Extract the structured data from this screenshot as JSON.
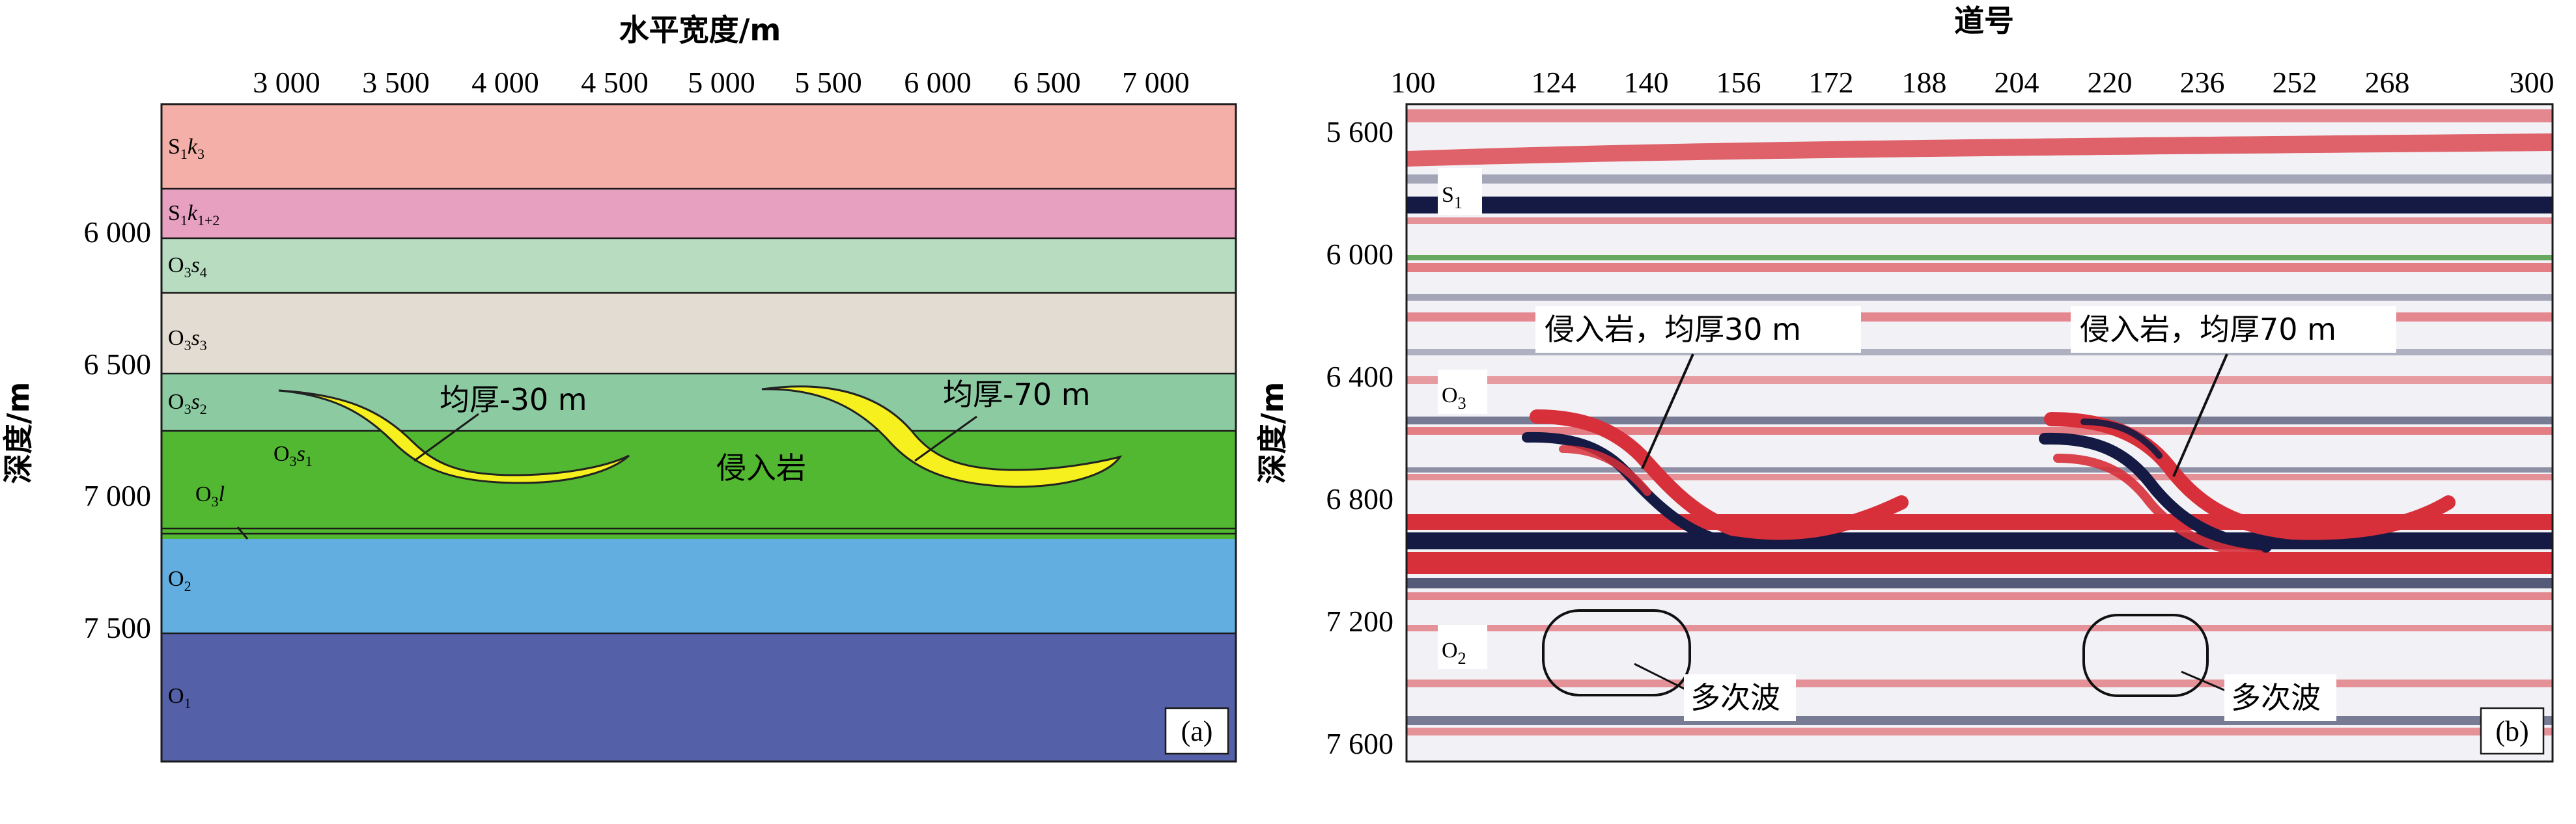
{
  "panel_a": {
    "x_axis_title": "水平宽度/m",
    "y_axis_title": "深度/m",
    "x_ticks": [
      "3 000",
      "3 500",
      "4 000",
      "4 500",
      "5 000",
      "5 500",
      "6 000",
      "6 500",
      "7 000"
    ],
    "y_ticks": [
      "6 000",
      "6 500",
      "7 000",
      "7 500"
    ],
    "layers": [
      {
        "label": "S1k3",
        "color": "#f4b0a8"
      },
      {
        "label": "S1k1+2",
        "color": "#e8a0c0"
      },
      {
        "label": "O3s4",
        "color": "#b7dcc0"
      },
      {
        "label": "O3s3",
        "color": "#e3dcd2"
      },
      {
        "label": "O3s2",
        "color": "#8ccaa2"
      },
      {
        "label": "O3s1",
        "color": "#52b832"
      },
      {
        "label": "O3l",
        "color": "#52b832"
      },
      {
        "label": "O2",
        "color": "#62aee0"
      },
      {
        "label": "O1",
        "color": "#5460a8"
      }
    ],
    "annotations": {
      "thin_sill": "均厚-30  m",
      "thick_sill": "均厚-70 m",
      "intrusion": "侵入岩"
    },
    "intrusion_color": "#f5f01e",
    "panel_tag": "(a)"
  },
  "panel_b": {
    "x_axis_title": "道号",
    "y_axis_title": "深度/m",
    "x_ticks": [
      "100",
      "124",
      "140",
      "156",
      "172",
      "188",
      "204",
      "220",
      "236",
      "252",
      "268",
      "300"
    ],
    "y_ticks": [
      "5 600",
      "6 000",
      "6 400",
      "6 800",
      "7 200",
      "7 600"
    ],
    "layer_labels": [
      "S1",
      "O3",
      "O2"
    ],
    "annotations": {
      "thin_sill": "侵入岩，均厚30 m",
      "thick_sill": "侵入岩，均厚70 m",
      "multiples_1": "多次波",
      "multiples_2": "多次波"
    },
    "colors": {
      "positive": "#d8303a",
      "negative": "#141a44",
      "background": "#f2f2f6"
    },
    "panel_tag": "(b)"
  }
}
